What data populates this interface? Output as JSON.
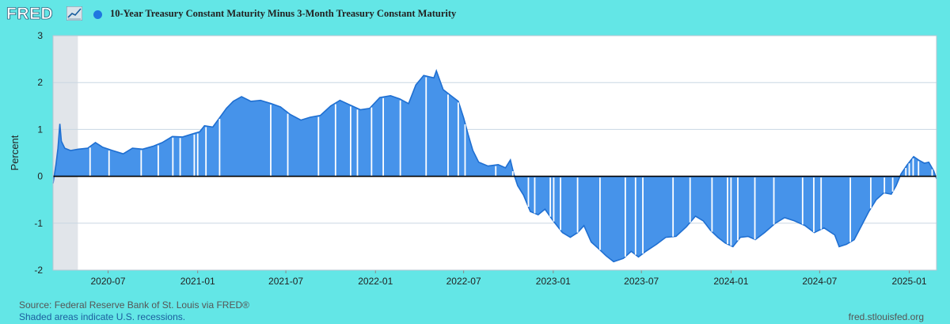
{
  "header": {
    "logo_text": "FRED",
    "logo_icon": "trend-chart-icon",
    "series_label": "10-Year Treasury Constant Maturity Minus 3-Month Treasury Constant Maturity",
    "series_color": "#1f77e0"
  },
  "footer": {
    "source": "Source: Federal Reserve Bank of St. Louis via FRED®",
    "note": "Shaded areas indicate U.S. recessions.",
    "url": "fred.stlouisfed.org"
  },
  "colors": {
    "frame": "#63e6e6",
    "plot_background": "#ffffff",
    "area_fill": "#4693ea",
    "area_line": "#1f6fd1",
    "zero_line": "#000000",
    "recession_shade": "#e1e5ea",
    "gridline": "#c9d7e2"
  },
  "chart_data": {
    "type": "area",
    "ylabel": "Percent",
    "ylim": [
      -2,
      3
    ],
    "yticks": [
      "3",
      "2",
      "1",
      "0",
      "-1",
      "-2"
    ],
    "xlim": [
      "2020-03-10",
      "2025-02-26"
    ],
    "xticks": [
      "2020-07",
      "2021-01",
      "2021-07",
      "2022-01",
      "2022-07",
      "2023-01",
      "2023-07",
      "2024-01",
      "2024-07",
      "2025-01"
    ],
    "grid": true,
    "recession": {
      "start": "2020-03-10",
      "end": "2020-04-30"
    },
    "series": [
      {
        "name": "10-Year Treasury Constant Maturity Minus 3-Month Treasury Constant Maturity",
        "points": [
          [
            "2020-03-10",
            -0.15
          ],
          [
            "2020-03-16",
            0.25
          ],
          [
            "2020-03-20",
            0.6
          ],
          [
            "2020-03-24",
            1.12
          ],
          [
            "2020-03-27",
            0.75
          ],
          [
            "2020-04-03",
            0.6
          ],
          [
            "2020-04-15",
            0.55
          ],
          [
            "2020-05-01",
            0.58
          ],
          [
            "2020-05-20",
            0.6
          ],
          [
            "2020-06-05",
            0.72
          ],
          [
            "2020-06-20",
            0.62
          ],
          [
            "2020-07-10",
            0.55
          ],
          [
            "2020-08-01",
            0.48
          ],
          [
            "2020-08-20",
            0.6
          ],
          [
            "2020-09-10",
            0.58
          ],
          [
            "2020-10-01",
            0.64
          ],
          [
            "2020-10-20",
            0.72
          ],
          [
            "2020-11-10",
            0.85
          ],
          [
            "2020-12-01",
            0.84
          ],
          [
            "2020-12-20",
            0.9
          ],
          [
            "2021-01-05",
            0.95
          ],
          [
            "2021-01-15",
            1.08
          ],
          [
            "2021-02-01",
            1.05
          ],
          [
            "2021-02-15",
            1.25
          ],
          [
            "2021-03-01",
            1.45
          ],
          [
            "2021-03-15",
            1.6
          ],
          [
            "2021-04-01",
            1.7
          ],
          [
            "2021-04-20",
            1.6
          ],
          [
            "2021-05-10",
            1.62
          ],
          [
            "2021-06-01",
            1.55
          ],
          [
            "2021-06-20",
            1.48
          ],
          [
            "2021-07-10",
            1.32
          ],
          [
            "2021-08-01",
            1.2
          ],
          [
            "2021-08-20",
            1.26
          ],
          [
            "2021-09-10",
            1.3
          ],
          [
            "2021-10-01",
            1.5
          ],
          [
            "2021-10-20",
            1.62
          ],
          [
            "2021-11-10",
            1.52
          ],
          [
            "2021-12-01",
            1.42
          ],
          [
            "2021-12-20",
            1.45
          ],
          [
            "2022-01-10",
            1.68
          ],
          [
            "2022-02-01",
            1.72
          ],
          [
            "2022-02-20",
            1.65
          ],
          [
            "2022-03-10",
            1.55
          ],
          [
            "2022-03-25",
            1.95
          ],
          [
            "2022-04-10",
            2.15
          ],
          [
            "2022-05-01",
            2.1
          ],
          [
            "2022-05-06",
            2.25
          ],
          [
            "2022-05-20",
            1.85
          ],
          [
            "2022-06-05",
            1.72
          ],
          [
            "2022-06-20",
            1.6
          ],
          [
            "2022-07-01",
            1.25
          ],
          [
            "2022-07-10",
            0.9
          ],
          [
            "2022-07-20",
            0.55
          ],
          [
            "2022-08-01",
            0.3
          ],
          [
            "2022-08-20",
            0.22
          ],
          [
            "2022-09-10",
            0.25
          ],
          [
            "2022-09-25",
            0.18
          ],
          [
            "2022-10-05",
            0.35
          ],
          [
            "2022-10-12",
            0.05
          ],
          [
            "2022-10-20",
            -0.2
          ],
          [
            "2022-11-01",
            -0.4
          ],
          [
            "2022-11-15",
            -0.75
          ],
          [
            "2022-12-01",
            -0.82
          ],
          [
            "2022-12-15",
            -0.7
          ],
          [
            "2023-01-01",
            -0.95
          ],
          [
            "2023-01-20",
            -1.2
          ],
          [
            "2023-02-05",
            -1.3
          ],
          [
            "2023-02-20",
            -1.2
          ],
          [
            "2023-03-05",
            -1.05
          ],
          [
            "2023-03-20",
            -1.4
          ],
          [
            "2023-04-05",
            -1.55
          ],
          [
            "2023-04-20",
            -1.7
          ],
          [
            "2023-05-05",
            -1.82
          ],
          [
            "2023-05-25",
            -1.75
          ],
          [
            "2023-06-10",
            -1.6
          ],
          [
            "2023-06-25",
            -1.72
          ],
          [
            "2023-07-10",
            -1.6
          ],
          [
            "2023-08-01",
            -1.45
          ],
          [
            "2023-08-20",
            -1.3
          ],
          [
            "2023-09-10",
            -1.28
          ],
          [
            "2023-10-01",
            -1.08
          ],
          [
            "2023-10-20",
            -0.85
          ],
          [
            "2023-11-05",
            -0.95
          ],
          [
            "2023-11-20",
            -1.15
          ],
          [
            "2023-12-05",
            -1.3
          ],
          [
            "2023-12-20",
            -1.42
          ],
          [
            "2024-01-05",
            -1.5
          ],
          [
            "2024-01-20",
            -1.3
          ],
          [
            "2024-02-05",
            -1.28
          ],
          [
            "2024-02-20",
            -1.35
          ],
          [
            "2024-03-10",
            -1.2
          ],
          [
            "2024-04-01",
            -1.0
          ],
          [
            "2024-04-20",
            -0.88
          ],
          [
            "2024-05-10",
            -0.95
          ],
          [
            "2024-06-01",
            -1.05
          ],
          [
            "2024-06-20",
            -1.2
          ],
          [
            "2024-07-10",
            -1.1
          ],
          [
            "2024-08-01",
            -1.25
          ],
          [
            "2024-08-10",
            -1.5
          ],
          [
            "2024-08-25",
            -1.45
          ],
          [
            "2024-09-10",
            -1.35
          ],
          [
            "2024-09-25",
            -1.05
          ],
          [
            "2024-10-10",
            -0.75
          ],
          [
            "2024-10-25",
            -0.5
          ],
          [
            "2024-11-10",
            -0.35
          ],
          [
            "2024-11-25",
            -0.38
          ],
          [
            "2024-12-05",
            -0.2
          ],
          [
            "2024-12-15",
            0.05
          ],
          [
            "2024-12-28",
            0.25
          ],
          [
            "2025-01-10",
            0.42
          ],
          [
            "2025-01-20",
            0.35
          ],
          [
            "2025-02-01",
            0.28
          ],
          [
            "2025-02-10",
            0.3
          ],
          [
            "2025-02-20",
            0.12
          ],
          [
            "2025-02-26",
            -0.05
          ]
        ],
        "gaps": [
          "2020-05-25",
          "2020-07-03",
          "2020-09-07",
          "2020-10-12",
          "2020-11-11",
          "2020-11-26",
          "2020-12-25",
          "2021-01-01",
          "2021-01-18",
          "2021-02-15",
          "2021-05-31",
          "2021-07-05",
          "2021-09-06",
          "2021-10-11",
          "2021-11-11",
          "2021-11-25",
          "2021-12-24",
          "2022-01-17",
          "2022-02-21",
          "2022-04-15",
          "2022-05-30",
          "2022-06-20",
          "2022-07-04",
          "2022-09-05",
          "2022-10-10",
          "2022-11-11",
          "2022-11-24",
          "2022-12-26",
          "2023-01-02",
          "2023-01-16",
          "2023-02-20",
          "2023-04-07",
          "2023-05-29",
          "2023-06-19",
          "2023-07-04",
          "2023-09-04",
          "2023-10-09",
          "2023-11-23",
          "2023-12-25",
          "2024-01-01",
          "2024-01-15",
          "2024-02-19",
          "2024-03-29",
          "2024-05-27",
          "2024-06-19",
          "2024-07-04",
          "2024-09-02",
          "2024-10-14",
          "2024-11-11",
          "2024-11-28",
          "2024-12-25",
          "2025-01-01",
          "2025-01-09",
          "2025-01-20",
          "2025-02-17"
        ]
      }
    ]
  }
}
